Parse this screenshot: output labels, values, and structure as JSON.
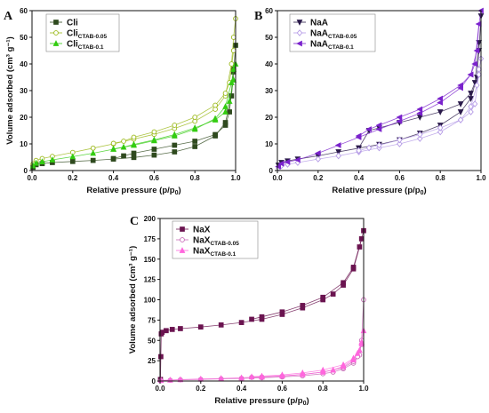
{
  "chart_data": [
    {
      "type": "scatter",
      "panel": "A",
      "xlabel_main": "Relative pressure (p/p",
      "xlabel_sub": "0",
      "xlabel_end": ")",
      "ylabel": "Volume adsorbed (cm³ g⁻¹)",
      "xlim": [
        0.0,
        1.0
      ],
      "ylim": [
        0,
        60
      ],
      "xticks": [
        "0.0",
        "0.2",
        "0.4",
        "0.6",
        "0.8",
        "1.0"
      ],
      "yticks": [
        "0",
        "10",
        "20",
        "30",
        "40",
        "50",
        "60"
      ],
      "legend_position": "top-left",
      "series": [
        {
          "name": "Cli",
          "sub": "",
          "color": "#2f4a1e",
          "marker": "square",
          "ads": [
            [
              0.005,
              1.2
            ],
            [
              0.02,
              2.2
            ],
            [
              0.05,
              2.6
            ],
            [
              0.1,
              3.0
            ],
            [
              0.2,
              3.4
            ],
            [
              0.3,
              3.8
            ],
            [
              0.4,
              4.3
            ],
            [
              0.5,
              4.9
            ],
            [
              0.6,
              5.8
            ],
            [
              0.7,
              7.0
            ],
            [
              0.8,
              9.0
            ],
            [
              0.9,
              13
            ],
            [
              0.95,
              18
            ],
            [
              0.98,
              28
            ],
            [
              0.99,
              37
            ],
            [
              1.0,
              47
            ]
          ],
          "des": [
            [
              0.99,
              38
            ],
            [
              0.97,
              22
            ],
            [
              0.95,
              17
            ],
            [
              0.9,
              13.5
            ],
            [
              0.8,
              11
            ],
            [
              0.7,
              9.5
            ],
            [
              0.6,
              8
            ],
            [
              0.5,
              6.5
            ],
            [
              0.45,
              5.5
            ],
            [
              0.4,
              4.5
            ]
          ]
        },
        {
          "name": "Cli",
          "sub": "CTAB-0.05",
          "color": "#9ab817",
          "marker": "circle",
          "ads": [
            [
              0.005,
              2.5
            ],
            [
              0.02,
              3.8
            ],
            [
              0.05,
              4.5
            ],
            [
              0.1,
              5.3
            ],
            [
              0.2,
              6.8
            ],
            [
              0.3,
              8.4
            ],
            [
              0.4,
              10
            ],
            [
              0.5,
              11.8
            ],
            [
              0.6,
              13.6
            ],
            [
              0.7,
              15.8
            ],
            [
              0.8,
              18.5
            ],
            [
              0.9,
              23
            ],
            [
              0.95,
              28
            ],
            [
              0.98,
              40
            ],
            [
              0.99,
              50
            ],
            [
              1.0,
              57
            ]
          ],
          "des": [
            [
              0.99,
              45
            ],
            [
              0.97,
              33
            ],
            [
              0.95,
              29
            ],
            [
              0.9,
              24.5
            ],
            [
              0.8,
              20
            ],
            [
              0.7,
              17
            ],
            [
              0.6,
              14.5
            ],
            [
              0.5,
              12.5
            ],
            [
              0.45,
              11
            ],
            [
              0.4,
              10.2
            ]
          ]
        },
        {
          "name": "Cli",
          "sub": "CTAB-0.1",
          "color": "#33cc11",
          "marker": "triangle",
          "ads": [
            [
              0.005,
              1.8
            ],
            [
              0.02,
              2.8
            ],
            [
              0.05,
              3.3
            ],
            [
              0.1,
              4.0
            ],
            [
              0.2,
              5.2
            ],
            [
              0.3,
              6.5
            ],
            [
              0.4,
              8.0
            ],
            [
              0.5,
              9.5
            ],
            [
              0.6,
              11.2
            ],
            [
              0.7,
              13
            ],
            [
              0.8,
              15.5
            ],
            [
              0.9,
              19.5
            ],
            [
              0.95,
              24
            ],
            [
              0.98,
              33
            ],
            [
              0.99,
              38
            ],
            [
              1.0,
              40
            ]
          ],
          "des": [
            [
              0.99,
              34
            ],
            [
              0.97,
              26
            ],
            [
              0.95,
              22
            ],
            [
              0.9,
              19
            ],
            [
              0.8,
              16
            ],
            [
              0.7,
              13.5
            ],
            [
              0.6,
              11.5
            ],
            [
              0.5,
              9.8
            ],
            [
              0.45,
              8.8
            ],
            [
              0.4,
              8.1
            ]
          ]
        }
      ]
    },
    {
      "type": "scatter",
      "panel": "B",
      "xlabel_main": "Relative pressure (p/p",
      "xlabel_sub": "0",
      "xlabel_end": ")",
      "ylabel": "",
      "xlim": [
        0.0,
        1.0
      ],
      "ylim": [
        0,
        60
      ],
      "xticks": [
        "0.0",
        "0.2",
        "0.4",
        "0.6",
        "0.8",
        "1.0"
      ],
      "yticks": [
        "0",
        "10",
        "20",
        "30",
        "40",
        "50",
        "60"
      ],
      "legend_position": "top-left",
      "series": [
        {
          "name": "NaA",
          "sub": "",
          "color": "#2a1a4a",
          "marker": "tri-down",
          "ads": [
            [
              0.005,
              2.0
            ],
            [
              0.02,
              3.0
            ],
            [
              0.05,
              3.6
            ],
            [
              0.1,
              4.3
            ],
            [
              0.2,
              5.5
            ],
            [
              0.3,
              7.0
            ],
            [
              0.4,
              8.4
            ],
            [
              0.5,
              9.8
            ],
            [
              0.6,
              11.5
            ],
            [
              0.7,
              14
            ],
            [
              0.8,
              17
            ],
            [
              0.9,
              22
            ],
            [
              0.95,
              27
            ],
            [
              0.98,
              35
            ],
            [
              0.99,
              45
            ],
            [
              1.0,
              58
            ]
          ],
          "des": [
            [
              0.99,
              48
            ],
            [
              0.97,
              33
            ],
            [
              0.95,
              29
            ],
            [
              0.9,
              25
            ],
            [
              0.8,
              22
            ],
            [
              0.7,
              20
            ],
            [
              0.6,
              18
            ],
            [
              0.5,
              16
            ],
            [
              0.45,
              15
            ],
            [
              0.4,
              8.5
            ]
          ]
        },
        {
          "name": "NaA",
          "sub": "CTAB-0.05",
          "color": "#b49ae6",
          "marker": "diamond",
          "ads": [
            [
              0.005,
              1.0
            ],
            [
              0.02,
              1.8
            ],
            [
              0.05,
              2.3
            ],
            [
              0.1,
              3.0
            ],
            [
              0.2,
              4.3
            ],
            [
              0.3,
              5.5
            ],
            [
              0.4,
              7.0
            ],
            [
              0.5,
              8.5
            ],
            [
              0.6,
              10
            ],
            [
              0.7,
              12
            ],
            [
              0.8,
              14.5
            ],
            [
              0.9,
              19
            ],
            [
              0.95,
              24
            ],
            [
              0.98,
              32
            ],
            [
              0.99,
              38
            ],
            [
              1.0,
              42
            ]
          ],
          "des": [
            [
              0.99,
              36
            ],
            [
              0.97,
              25
            ],
            [
              0.95,
              22
            ],
            [
              0.9,
              19
            ],
            [
              0.8,
              16
            ],
            [
              0.7,
              13.5
            ],
            [
              0.6,
              11.5
            ],
            [
              0.5,
              9.5
            ],
            [
              0.45,
              8.5
            ],
            [
              0.4,
              7.5
            ]
          ]
        },
        {
          "name": "NaA",
          "sub": "CTAB-0.1",
          "color": "#7a22cc",
          "marker": "tri-left",
          "ads": [
            [
              0.005,
              1.5
            ],
            [
              0.02,
              2.6
            ],
            [
              0.05,
              3.2
            ],
            [
              0.1,
              4.0
            ],
            [
              0.2,
              6.5
            ],
            [
              0.3,
              9.5
            ],
            [
              0.4,
              12.5
            ],
            [
              0.5,
              15.5
            ],
            [
              0.6,
              18.5
            ],
            [
              0.7,
              21.5
            ],
            [
              0.8,
              25.5
            ],
            [
              0.9,
              31
            ],
            [
              0.95,
              36
            ],
            [
              0.98,
              45
            ],
            [
              0.99,
              55
            ],
            [
              1.0,
              62
            ]
          ],
          "des": [
            [
              0.99,
              55
            ],
            [
              0.97,
              40
            ],
            [
              0.95,
              36
            ],
            [
              0.9,
              32
            ],
            [
              0.8,
              27
            ],
            [
              0.7,
              23
            ],
            [
              0.6,
              20
            ],
            [
              0.5,
              17
            ],
            [
              0.45,
              15.5
            ],
            [
              0.4,
              13
            ]
          ]
        }
      ]
    },
    {
      "type": "scatter",
      "panel": "C",
      "xlabel_main": "Relative pressure (p/p",
      "xlabel_sub": "0",
      "xlabel_end": ")",
      "ylabel": "Volume adsorbed (cm³ g⁻¹)",
      "xlim": [
        0.0,
        1.0
      ],
      "ylim": [
        0,
        200
      ],
      "xticks": [
        "0.0",
        "0.2",
        "0.4",
        "0.6",
        "0.8",
        "1.0"
      ],
      "yticks": [
        "0",
        "25",
        "50",
        "75",
        "100",
        "125",
        "150",
        "175",
        "200"
      ],
      "legend_position": "top-left",
      "series": [
        {
          "name": "NaX",
          "sub": "",
          "color": "#6b1450",
          "marker": "square",
          "ads": [
            [
              0.002,
              2
            ],
            [
              0.004,
              30
            ],
            [
              0.006,
              58
            ],
            [
              0.01,
              60
            ],
            [
              0.03,
              62
            ],
            [
              0.06,
              63.5
            ],
            [
              0.1,
              64.5
            ],
            [
              0.2,
              66.5
            ],
            [
              0.3,
              69
            ],
            [
              0.4,
              72
            ],
            [
              0.5,
              76
            ],
            [
              0.6,
              82
            ],
            [
              0.7,
              90
            ],
            [
              0.8,
              100
            ],
            [
              0.85,
              107
            ],
            [
              0.9,
              118
            ],
            [
              0.95,
              138
            ],
            [
              0.98,
              165
            ],
            [
              1.0,
              185
            ]
          ],
          "des": [
            [
              0.99,
              175
            ],
            [
              0.95,
              140
            ],
            [
              0.9,
              121
            ],
            [
              0.8,
              103
            ],
            [
              0.7,
              93
            ],
            [
              0.6,
              85
            ],
            [
              0.5,
              79
            ],
            [
              0.45,
              76
            ]
          ]
        },
        {
          "name": "NaX",
          "sub": "CTAB-0.05",
          "color": "#c86ab8",
          "marker": "circle",
          "ads": [
            [
              0.005,
              0.5
            ],
            [
              0.05,
              1.0
            ],
            [
              0.1,
              1.5
            ],
            [
              0.2,
              2.0
            ],
            [
              0.3,
              2.6
            ],
            [
              0.4,
              3.2
            ],
            [
              0.5,
              4.0
            ],
            [
              0.6,
              5.0
            ],
            [
              0.7,
              6.5
            ],
            [
              0.8,
              9
            ],
            [
              0.85,
              11
            ],
            [
              0.9,
              15
            ],
            [
              0.95,
              22
            ],
            [
              0.98,
              32
            ],
            [
              0.99,
              50
            ],
            [
              1.0,
              100
            ]
          ],
          "des": [
            [
              0.99,
              45
            ],
            [
              0.97,
              30
            ],
            [
              0.95,
              24
            ],
            [
              0.9,
              16.5
            ],
            [
              0.8,
              11
            ],
            [
              0.7,
              8
            ],
            [
              0.6,
              6
            ],
            [
              0.5,
              5
            ],
            [
              0.45,
              4.5
            ]
          ]
        },
        {
          "name": "NaX",
          "sub": "CTAB-0.1",
          "color": "#ff66dd",
          "marker": "triangle",
          "ads": [
            [
              0.005,
              0.8
            ],
            [
              0.05,
              1.2
            ],
            [
              0.1,
              1.8
            ],
            [
              0.2,
              2.5
            ],
            [
              0.3,
              3.2
            ],
            [
              0.4,
              4.0
            ],
            [
              0.5,
              5.0
            ],
            [
              0.6,
              6.3
            ],
            [
              0.7,
              8
            ],
            [
              0.8,
              11
            ],
            [
              0.85,
              13.5
            ],
            [
              0.9,
              18
            ],
            [
              0.95,
              26
            ],
            [
              0.98,
              38
            ],
            [
              0.99,
              48
            ],
            [
              1.0,
              62
            ]
          ],
          "des": [
            [
              0.99,
              46
            ],
            [
              0.97,
              34
            ],
            [
              0.95,
              28
            ],
            [
              0.9,
              20
            ],
            [
              0.8,
              13.5
            ],
            [
              0.7,
              10
            ],
            [
              0.6,
              7.5
            ],
            [
              0.5,
              6
            ],
            [
              0.45,
              5.2
            ]
          ]
        }
      ]
    }
  ]
}
